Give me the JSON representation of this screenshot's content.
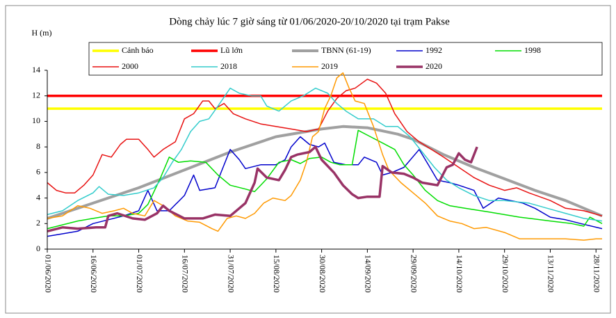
{
  "chart_data": {
    "type": "line",
    "title": "Dòng chảy lúc 7 giờ sáng từ 01/06/2020-20/10/2020 tại trạm Pakse",
    "y_label": "H (m)",
    "xlim": [
      0,
      182
    ],
    "xticks": [
      {
        "value": 0,
        "label": "01/06/2020"
      },
      {
        "value": 15,
        "label": "16/06/2020"
      },
      {
        "value": 30,
        "label": "01/07/2020"
      },
      {
        "value": 45,
        "label": "16/07/2020"
      },
      {
        "value": 60,
        "label": "31/07/2020"
      },
      {
        "value": 75,
        "label": "15/08/2020"
      },
      {
        "value": 90,
        "label": "30/08/2020"
      },
      {
        "value": 105,
        "label": "14/09/2020"
      },
      {
        "value": 120,
        "label": "29/09/2020"
      },
      {
        "value": 135,
        "label": "14/10/2020"
      },
      {
        "value": 150,
        "label": "29/10/2020"
      },
      {
        "value": 165,
        "label": "13/11/2020"
      },
      {
        "value": 180,
        "label": "28/11/2020"
      }
    ],
    "ylim": [
      0,
      14
    ],
    "yticks": [
      0,
      2,
      4,
      6,
      8,
      10,
      12,
      14
    ],
    "series": [
      {
        "name": "Cảnh báo",
        "color": "#ffff00",
        "width": 3.5,
        "x": [
          0,
          182
        ],
        "values": [
          11,
          11
        ]
      },
      {
        "name": "Lũ lớn",
        "color": "#ff0000",
        "width": 3.5,
        "x": [
          0,
          182
        ],
        "values": [
          12,
          12
        ]
      },
      {
        "name": "TBNN (61-19)",
        "color": "#a0a0a0",
        "width": 4,
        "x": [
          0,
          15,
          30,
          45,
          60,
          75,
          90,
          97,
          105,
          115,
          120,
          130,
          140,
          150,
          160,
          170,
          182
        ],
        "values": [
          2.4,
          3.6,
          4.8,
          6.2,
          7.6,
          8.8,
          9.4,
          9.6,
          9.5,
          9.0,
          8.6,
          7.4,
          6.4,
          5.5,
          4.6,
          3.8,
          2.6
        ]
      },
      {
        "name": "1992",
        "color": "#0000cc",
        "width": 1.5,
        "x": [
          0,
          5,
          10,
          15,
          20,
          25,
          30,
          33,
          36,
          40,
          45,
          48,
          50,
          55,
          57,
          60,
          63,
          65,
          70,
          75,
          78,
          80,
          83,
          86,
          89,
          91,
          94,
          98,
          102,
          104,
          108,
          110,
          113,
          117,
          122,
          125,
          128,
          132,
          135,
          140,
          143,
          148,
          152,
          156,
          160,
          165,
          170,
          175,
          182
        ],
        "values": [
          1.0,
          1.2,
          1.4,
          2.0,
          2.3,
          2.6,
          3.0,
          4.6,
          3.0,
          3.0,
          4.2,
          5.8,
          4.6,
          4.8,
          6.0,
          7.8,
          7.0,
          6.3,
          6.6,
          6.6,
          7.0,
          8.0,
          8.8,
          8.2,
          8.0,
          8.3,
          6.8,
          6.6,
          6.6,
          7.2,
          6.8,
          5.8,
          6.0,
          6.4,
          7.8,
          6.6,
          5.4,
          5.2,
          5.0,
          4.6,
          3.2,
          4.0,
          3.8,
          3.6,
          3.2,
          2.5,
          2.3,
          2.0,
          1.6
        ]
      },
      {
        "name": "1998",
        "color": "#00dd00",
        "width": 1.5,
        "x": [
          0,
          5,
          10,
          15,
          20,
          25,
          30,
          33,
          37,
          40,
          43,
          47,
          52,
          56,
          60,
          65,
          68,
          72,
          76,
          80,
          83,
          86,
          90,
          93,
          96,
          100,
          102,
          106,
          110,
          114,
          117,
          120,
          124,
          128,
          132,
          137,
          145,
          155,
          165,
          172,
          176,
          178,
          182
        ],
        "values": [
          1.6,
          1.9,
          2.2,
          2.4,
          2.6,
          2.6,
          2.8,
          3.5,
          5.5,
          7.2,
          6.8,
          6.9,
          6.8,
          5.8,
          5.0,
          4.7,
          4.5,
          5.5,
          6.8,
          7.0,
          6.7,
          7.1,
          7.2,
          6.8,
          6.6,
          6.6,
          9.3,
          8.8,
          8.3,
          7.8,
          6.6,
          5.8,
          4.6,
          3.8,
          3.4,
          3.2,
          2.9,
          2.5,
          2.2,
          2.0,
          1.8,
          2.5,
          2.0
        ]
      },
      {
        "name": "2000",
        "color": "#e81010",
        "width": 1.5,
        "x": [
          0,
          3,
          6,
          9,
          12,
          15,
          18,
          21,
          24,
          26,
          30,
          33,
          35,
          38,
          42,
          45,
          48,
          51,
          53,
          55,
          58,
          61,
          65,
          70,
          75,
          80,
          85,
          89,
          92,
          95,
          98,
          101,
          105,
          108,
          111,
          114,
          118,
          122,
          126,
          130,
          135,
          140,
          145,
          150,
          154,
          158,
          165,
          170,
          176,
          182
        ],
        "values": [
          5.2,
          4.6,
          4.4,
          4.4,
          5.0,
          5.8,
          7.4,
          7.2,
          8.2,
          8.6,
          8.6,
          7.8,
          7.2,
          7.8,
          8.4,
          10.2,
          10.6,
          11.6,
          11.6,
          11.0,
          11.4,
          10.6,
          10.2,
          9.8,
          9.6,
          9.4,
          9.2,
          9.4,
          10.8,
          11.8,
          12.4,
          12.6,
          13.3,
          13.0,
          12.2,
          10.6,
          9.2,
          8.4,
          7.8,
          7.2,
          6.4,
          5.6,
          5.0,
          4.6,
          4.8,
          4.4,
          3.8,
          3.2,
          3.0,
          2.6
        ]
      },
      {
        "name": "2018",
        "color": "#33cccc",
        "width": 1.5,
        "x": [
          0,
          5,
          10,
          15,
          17,
          20,
          25,
          30,
          35,
          38,
          41,
          44,
          47,
          50,
          53,
          56,
          60,
          63,
          67,
          70,
          72,
          76,
          80,
          84,
          88,
          92,
          95,
          98,
          102,
          107,
          111,
          115,
          119,
          123,
          127,
          131,
          135,
          140,
          145,
          150,
          158,
          164,
          170,
          176,
          182
        ],
        "values": [
          2.7,
          3.0,
          3.8,
          4.4,
          4.9,
          4.3,
          4.2,
          4.4,
          4.8,
          5.6,
          6.8,
          7.8,
          9.2,
          10.0,
          10.2,
          11.2,
          12.6,
          12.2,
          12.0,
          12.0,
          11.2,
          10.8,
          11.6,
          12.0,
          12.6,
          12.2,
          11.4,
          10.8,
          10.2,
          10.2,
          9.6,
          9.6,
          8.8,
          7.6,
          6.4,
          5.4,
          4.8,
          4.2,
          3.8,
          3.8,
          3.6,
          3.2,
          2.8,
          2.4,
          2.2
        ]
      },
      {
        "name": "2019",
        "color": "#ff9900",
        "width": 1.5,
        "x": [
          0,
          5,
          10,
          14,
          18,
          22,
          25,
          28,
          32,
          35,
          38,
          42,
          46,
          50,
          54,
          56,
          59,
          62,
          65,
          68,
          71,
          74,
          78,
          80,
          83,
          85,
          87,
          89,
          91,
          93,
          95,
          97,
          99,
          101,
          104,
          107,
          110,
          112,
          116,
          120,
          124,
          128,
          132,
          136,
          140,
          144,
          150,
          155,
          160,
          165,
          170,
          176,
          180,
          182
        ],
        "values": [
          2.4,
          2.6,
          3.4,
          3.2,
          2.8,
          3.0,
          3.2,
          2.8,
          2.6,
          3.8,
          3.4,
          2.6,
          2.2,
          2.1,
          1.6,
          1.4,
          2.4,
          2.6,
          2.4,
          2.8,
          3.6,
          4.0,
          3.8,
          4.2,
          5.4,
          6.8,
          8.8,
          9.2,
          11.0,
          12.0,
          13.4,
          13.8,
          12.6,
          11.6,
          11.4,
          9.6,
          7.4,
          6.2,
          5.2,
          4.4,
          3.6,
          2.6,
          2.2,
          2.0,
          1.6,
          1.7,
          1.3,
          0.8,
          0.8,
          0.8,
          0.8,
          0.7,
          0.8,
          0.8
        ]
      },
      {
        "name": "2020",
        "color": "#993366",
        "width": 3.5,
        "x": [
          0,
          5,
          10,
          16,
          19,
          20,
          23,
          28,
          32,
          36,
          38,
          40,
          45,
          51,
          55,
          60,
          63,
          65,
          68,
          69,
          72,
          76,
          78,
          80,
          82,
          86,
          88,
          90,
          94,
          97,
          100,
          102,
          105,
          109,
          110,
          113,
          117,
          120,
          123,
          128,
          131,
          133,
          135,
          137,
          139,
          141
        ],
        "values": [
          1.4,
          1.7,
          1.6,
          1.7,
          1.7,
          2.6,
          2.8,
          2.4,
          2.3,
          2.8,
          3.4,
          3.0,
          2.4,
          2.4,
          2.7,
          2.6,
          3.2,
          3.6,
          5.2,
          6.3,
          5.6,
          5.4,
          6.2,
          7.2,
          7.4,
          7.6,
          8.0,
          7.0,
          6.0,
          5.0,
          4.3,
          4.0,
          4.1,
          4.1,
          6.5,
          6.0,
          5.9,
          5.6,
          5.2,
          5.0,
          6.4,
          6.6,
          7.5,
          7.0,
          6.8,
          8.0
        ]
      }
    ]
  }
}
